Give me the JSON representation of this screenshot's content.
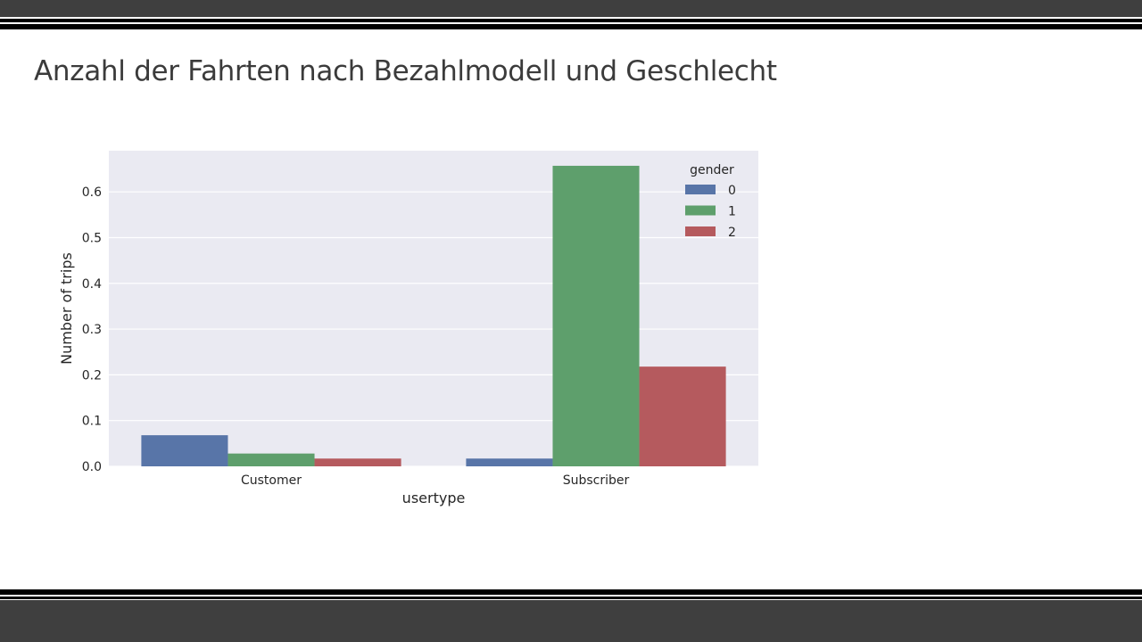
{
  "slide": {
    "title": "Anzahl der Fahrten nach Bezahlmodell und Geschlecht"
  },
  "chart_data": {
    "type": "bar",
    "xlabel": "usertype",
    "ylabel": "Number of trips",
    "categories": [
      "Customer",
      "Subscriber"
    ],
    "series": [
      {
        "name": "0",
        "values": [
          0.068,
          0.017
        ],
        "color": "#5875a8"
      },
      {
        "name": "1",
        "values": [
          0.028,
          0.657
        ],
        "color": "#5e9f6c"
      },
      {
        "name": "2",
        "values": [
          0.017,
          0.218
        ],
        "color": "#b55a5e"
      }
    ],
    "ylim": [
      0,
      0.69
    ],
    "yticks": [
      "0.0",
      "0.1",
      "0.2",
      "0.3",
      "0.4",
      "0.5",
      "0.6"
    ],
    "legend": {
      "title": "gender",
      "placement": "top-right"
    },
    "grid": true,
    "background": "#eaeaf2"
  }
}
